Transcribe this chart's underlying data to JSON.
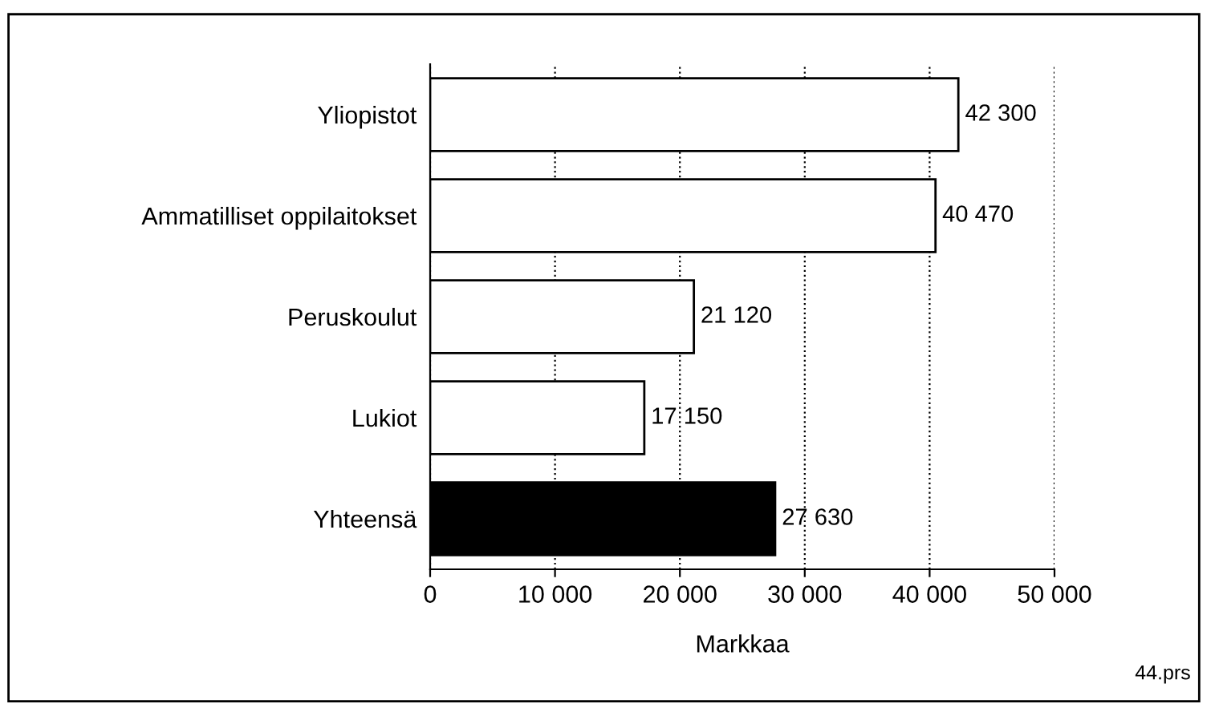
{
  "chart_data": {
    "type": "bar",
    "orientation": "horizontal",
    "xlabel": "Markkaa",
    "categories": [
      "Yliopistot",
      "Ammatilliset oppilaitokset",
      "Peruskoulut",
      "Lukiot",
      "Yhteensä"
    ],
    "values": [
      42300,
      40470,
      21120,
      17150,
      27630
    ],
    "colors": [
      "#ffffff",
      "#ffffff",
      "#ffffff",
      "#ffffff",
      "#000000"
    ],
    "value_labels": [
      "42 300",
      "40 470",
      "21 120",
      "17 150",
      "27 630"
    ],
    "xlim": [
      0,
      50000
    ],
    "xticks": [
      0,
      {
        "value": 10000,
        "label": "10 000"
      },
      {
        "value": 20000,
        "label": "20 000"
      },
      {
        "value": 30000,
        "label": "30 000"
      },
      {
        "value": 40000,
        "label": "40 000"
      },
      {
        "value": 50000,
        "label": "50 000"
      }
    ],
    "grid": "x",
    "line_style": "dotted",
    "annotations": [
      "44.prs"
    ]
  }
}
